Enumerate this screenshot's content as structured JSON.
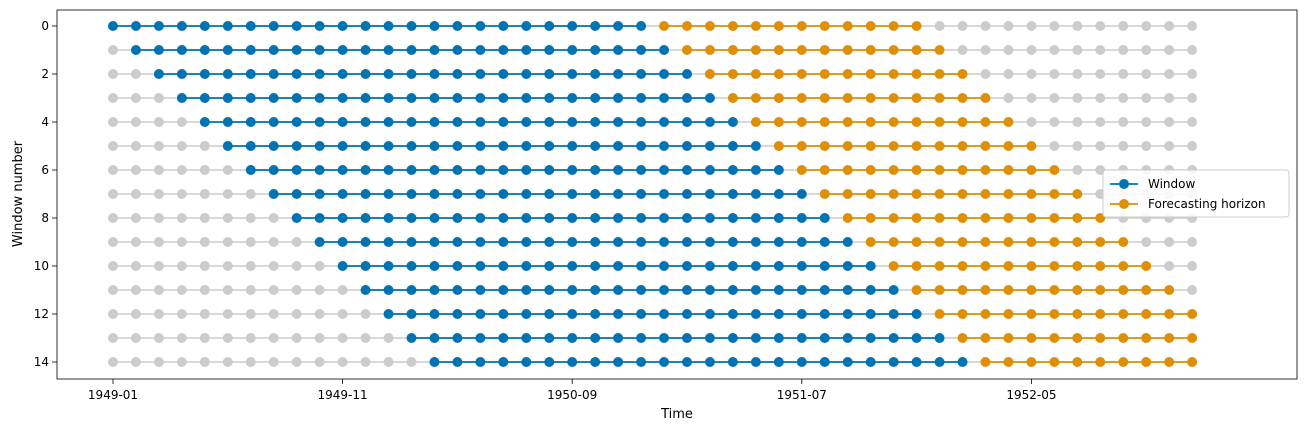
{
  "chart_data": {
    "type": "line",
    "title": "",
    "xlabel": "Time",
    "ylabel": "Window number",
    "x_axis": {
      "start": "1949-01",
      "end": "1952-12",
      "tick_labels": [
        "1949-01",
        "1949-11",
        "1950-09",
        "1951-07",
        "1952-05"
      ]
    },
    "y_axis": {
      "inverted": true,
      "ylim": [
        -0.7,
        14.7
      ],
      "tick_labels": [
        "0",
        "2",
        "4",
        "6",
        "8",
        "10",
        "12",
        "14"
      ]
    },
    "windows": {
      "count": 15,
      "window_length": 24,
      "horizon_length": 12,
      "step": 1
    },
    "series": [
      {
        "name": "Window",
        "color": "#0173b2"
      },
      {
        "name": "Forecasting horizon",
        "color": "#de8f05"
      }
    ],
    "background_color": "#cccccc",
    "legend": {
      "placement": "right",
      "entries": [
        "Window",
        "Forecasting horizon"
      ]
    },
    "grid": false
  }
}
